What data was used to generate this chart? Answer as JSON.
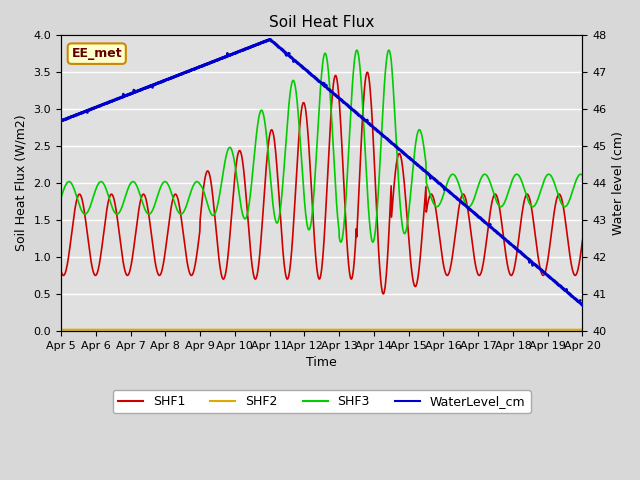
{
  "title": "Soil Heat Flux",
  "xlabel": "Time",
  "ylabel_left": "Soil Heat Flux (W/m2)",
  "ylabel_right": "Water level (cm)",
  "ylim_left": [
    0.0,
    4.0
  ],
  "ylim_right": [
    40.0,
    48.0
  ],
  "background_color": "#d8d8d8",
  "plot_bg_color": "#e0e0e0",
  "grid_color": "white",
  "annotation_text": "EE_met",
  "annotation_color": "#cc8800",
  "annotation_bg": "#ffffcc",
  "annotation_text_color": "#660000",
  "line_colors": {
    "SHF1": "#cc0000",
    "SHF2": "#ddaa00",
    "SHF3": "#00cc00",
    "WaterLevel_cm": "#0000cc"
  },
  "x_ticks": [
    5,
    6,
    7,
    8,
    9,
    10,
    11,
    12,
    13,
    14,
    15,
    16,
    17,
    18,
    19,
    20
  ],
  "x_tick_labels": [
    "Apr 5",
    "Apr 6",
    "Apr 7",
    "Apr 8",
    "Apr 9",
    "Apr 10",
    "Apr 11",
    "Apr 12",
    "Apr 13",
    "Apr 14",
    "Apr 15",
    "Apr 16",
    "Apr 17",
    "Apr 18",
    "Apr 19",
    "Apr 20"
  ],
  "yticks_left": [
    0.0,
    0.5,
    1.0,
    1.5,
    2.0,
    2.5,
    3.0,
    3.5,
    4.0
  ],
  "yticks_right": [
    40.0,
    41.0,
    42.0,
    43.0,
    44.0,
    45.0,
    46.0,
    47.0,
    48.0
  ],
  "figsize": [
    6.4,
    4.8
  ],
  "dpi": 100
}
